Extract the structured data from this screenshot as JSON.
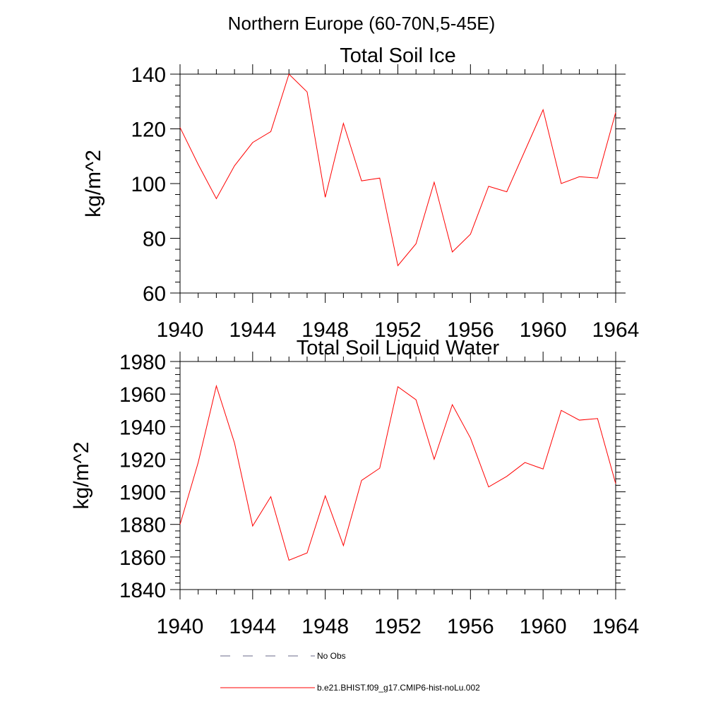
{
  "figure_title": "Northern Europe (60-70N,5-45E)",
  "legend": {
    "items": [
      {
        "label": "No Obs",
        "style": "dashed",
        "color": "#6a6a8a"
      },
      {
        "label": "b.e21.BHIST.f09_g17.CMIP6-hist-noLu.002",
        "style": "solid",
        "color": "#ff0000"
      }
    ]
  },
  "chart_data": [
    {
      "type": "line",
      "title": "Total Soil Ice",
      "xlabel": "",
      "ylabel": "kg/m^2",
      "xlim": [
        1940,
        1964
      ],
      "ylim": [
        60,
        140
      ],
      "xticks": [
        1940,
        1944,
        1948,
        1952,
        1956,
        1960,
        1964
      ],
      "yticks": [
        60,
        80,
        100,
        120,
        140
      ],
      "x": [
        1940,
        1941,
        1942,
        1943,
        1944,
        1945,
        1946,
        1947,
        1948,
        1949,
        1950,
        1951,
        1952,
        1953,
        1954,
        1955,
        1956,
        1957,
        1958,
        1959,
        1960,
        1961,
        1962,
        1963,
        1964
      ],
      "series": [
        {
          "name": "b.e21.BHIST.f09_g17.CMIP6-hist-noLu.002",
          "color": "#ff0000",
          "values": [
            120.5,
            107,
            94.5,
            106.5,
            115,
            119,
            140,
            133.5,
            95,
            122,
            101,
            102,
            70,
            78,
            100.5,
            75,
            81.5,
            99,
            97,
            112,
            127,
            100,
            102.5,
            102,
            126
          ]
        }
      ]
    },
    {
      "type": "line",
      "title": "Total Soil Liquid Water",
      "xlabel": "",
      "ylabel": "kg/m^2",
      "xlim": [
        1940,
        1964
      ],
      "ylim": [
        1840,
        1980
      ],
      "xticks": [
        1940,
        1944,
        1948,
        1952,
        1956,
        1960,
        1964
      ],
      "yticks": [
        1840,
        1860,
        1880,
        1900,
        1920,
        1940,
        1960,
        1980
      ],
      "x": [
        1940,
        1941,
        1942,
        1943,
        1944,
        1945,
        1946,
        1947,
        1948,
        1949,
        1950,
        1951,
        1952,
        1953,
        1954,
        1955,
        1956,
        1957,
        1958,
        1959,
        1960,
        1961,
        1962,
        1963,
        1964
      ],
      "series": [
        {
          "name": "b.e21.BHIST.f09_g17.CMIP6-hist-noLu.002",
          "color": "#ff0000",
          "values": [
            1880,
            1918,
            1965,
            1930,
            1879,
            1897,
            1858,
            1862.5,
            1897.5,
            1867,
            1907,
            1914.5,
            1964.5,
            1956.5,
            1920,
            1953.5,
            1933,
            1903,
            1909.5,
            1918,
            1914,
            1950,
            1944,
            1945,
            1905
          ]
        }
      ]
    }
  ]
}
